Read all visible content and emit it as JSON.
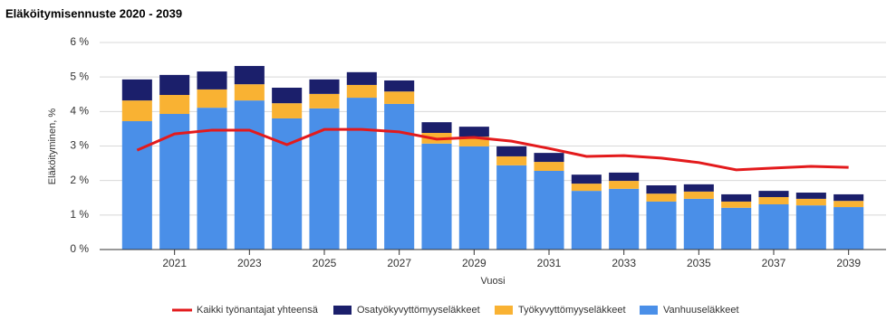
{
  "chart_data": {
    "type": "stacked-bar-line",
    "title": "Eläköitymisennuste 2020 - 2039",
    "x_label": "Vuosi",
    "y_label": "Eläköityminen, %",
    "categories": [
      null,
      "2021",
      null,
      "2023",
      null,
      "2025",
      null,
      "2027",
      null,
      "2029",
      null,
      "2031",
      null,
      "2033",
      null,
      "2035",
      null,
      "2037",
      null,
      "2039"
    ],
    "ylim": [
      0,
      6
    ],
    "yticks": [
      {
        "value": 0,
        "label": "0 %"
      },
      {
        "value": 1,
        "label": "1 %"
      },
      {
        "value": 2,
        "label": "2 %"
      },
      {
        "value": 3,
        "label": "3 %"
      },
      {
        "value": 4,
        "label": "4 %"
      },
      {
        "value": 5,
        "label": "5 %"
      },
      {
        "value": 6,
        "label": "6 %"
      }
    ],
    "grid": true,
    "legend": "bottom",
    "series": [
      {
        "name": "Kaikki työnantajat yhteensä",
        "type": "line",
        "color": "#e31a1c",
        "values": [
          2.88,
          3.35,
          3.46,
          3.46,
          3.04,
          3.48,
          3.48,
          3.41,
          3.2,
          3.25,
          3.14,
          2.93,
          2.7,
          2.72,
          2.65,
          2.52,
          2.31,
          2.36,
          2.41,
          2.38
        ]
      },
      {
        "name": "Osatyökyvyttömyyseläkkeet",
        "type": "bar",
        "color": "#1b1f6b",
        "values": [
          0.61,
          0.58,
          0.52,
          0.53,
          0.45,
          0.42,
          0.37,
          0.32,
          0.31,
          0.29,
          0.29,
          0.26,
          0.26,
          0.24,
          0.24,
          0.21,
          0.21,
          0.18,
          0.18,
          0.19
        ]
      },
      {
        "name": "Työkyvyttömyyseläkkeet",
        "type": "bar",
        "color": "#f9b233",
        "values": [
          0.6,
          0.55,
          0.53,
          0.47,
          0.44,
          0.42,
          0.37,
          0.36,
          0.31,
          0.28,
          0.26,
          0.26,
          0.21,
          0.23,
          0.23,
          0.21,
          0.18,
          0.21,
          0.19,
          0.18
        ]
      },
      {
        "name": "Vanhuuseläkkeet",
        "type": "bar",
        "color": "#4a8fe8",
        "values": [
          3.72,
          3.93,
          4.11,
          4.32,
          3.8,
          4.09,
          4.4,
          4.22,
          3.07,
          2.99,
          2.44,
          2.28,
          1.7,
          1.76,
          1.39,
          1.47,
          1.21,
          1.31,
          1.28,
          1.23
        ]
      }
    ]
  }
}
